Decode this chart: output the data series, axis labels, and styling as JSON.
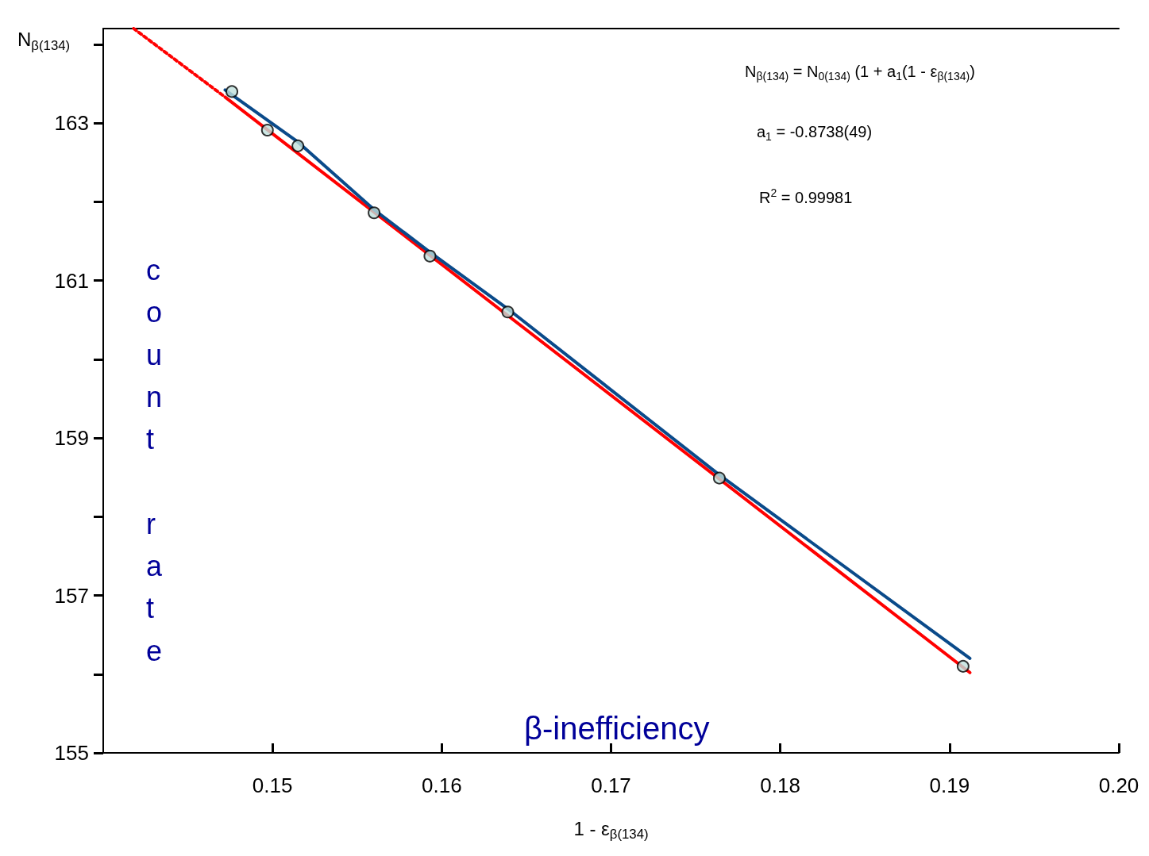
{
  "chart_data": {
    "type": "scatter",
    "ylabel": "N$_{β(134)}$",
    "xlabel": "1 - ε$_{β(134)}$",
    "xlim": [
      0.14,
      0.2
    ],
    "xticks": [
      0.15,
      0.16,
      0.17,
      0.18,
      0.19,
      {
        "value": 0.2,
        "label": "0.20"
      }
    ],
    "ylim": [
      155,
      164.2
    ],
    "yticks": [
      155,
      {
        "value": 156,
        "label": null
      },
      157,
      {
        "value": 158,
        "label": null
      },
      159,
      {
        "value": 160,
        "label": null
      },
      161,
      {
        "value": 162,
        "label": null
      },
      163,
      {
        "value": 164,
        "label": null
      }
    ],
    "grid": false,
    "annotations": [
      "N$_{β(134)}$ = N$_{0(134)}$ (1 + a$_{1}$(1 - ε$_{β(134)}$)",
      "a$_{1}$ = -0.8738(49)",
      "R$^{2}$ = 0.99981",
      "count rate",
      "β-inefficiency"
    ],
    "series": [
      {
        "type": "line",
        "color": "#ff0000",
        "line_style": "solid",
        "marker": "none",
        "x": [
          0.1472,
          0.1912
        ],
        "values": [
          163.33,
          156.02
        ]
      },
      {
        "type": "line",
        "color": "#ff0000",
        "line_style": "dotted",
        "marker": "none",
        "x": [
          0.1418,
          0.1472
        ],
        "values": [
          164.2,
          163.33
        ]
      },
      {
        "type": "line",
        "color": "#0a4a8a",
        "line_style": "solid",
        "marker": "none",
        "x": [
          0.1472,
          0.1515,
          0.156,
          0.1593,
          0.1639,
          0.1764,
          0.1912
        ],
        "values": [
          163.42,
          162.76,
          161.9,
          161.36,
          160.64,
          158.53,
          156.2
        ]
      },
      {
        "color": "#bfe0dc",
        "marker": "circle",
        "x": [
          0.1476,
          0.1497,
          0.1515,
          0.156,
          0.1593,
          0.1639,
          0.1764,
          0.1908
        ],
        "values": [
          163.4,
          162.91,
          162.71,
          161.86,
          161.31,
          160.6,
          158.49,
          156.1
        ]
      }
    ]
  }
}
